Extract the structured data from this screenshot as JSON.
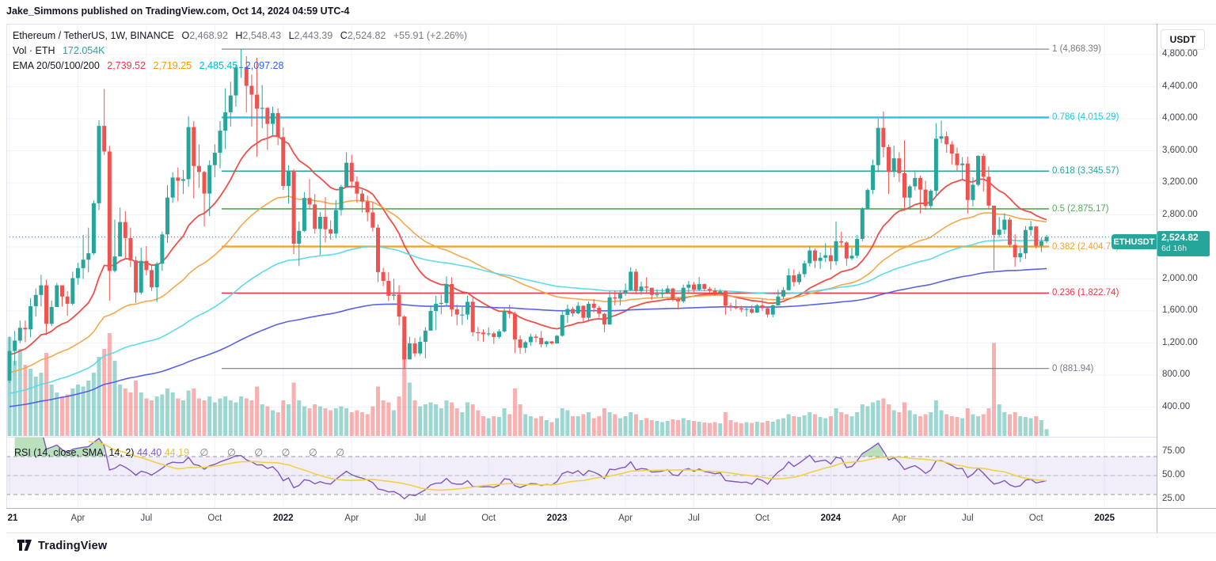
{
  "header": {
    "published_line": "Jake_Simmons published on TradingView.com, Oct 14, 2024 04:59 UTC-4"
  },
  "legend": {
    "symbol": {
      "title": "Ethereum / TetherUS, 1W, BINANCE",
      "o_label": "O",
      "o_value": "2,468.92",
      "h_label": "H",
      "h_value": "2,548.43",
      "l_label": "L",
      "l_value": "2,443.39",
      "c_label": "C",
      "c_value": "2,524.82",
      "change": "+55.91 (+2.26%)"
    },
    "volume": {
      "label": "Vol · ETH",
      "value": "172.054K",
      "value_color": "#26a69a"
    },
    "ema": {
      "label": "EMA 20/50/100/200",
      "values": [
        {
          "text": "2,739.52",
          "color": "#f23645"
        },
        {
          "text": "2,719.25",
          "color": "#ff9800"
        },
        {
          "text": "2,485.45",
          "color": "#00bcd4"
        },
        {
          "text": "2,097.28",
          "color": "#2962ff"
        }
      ]
    }
  },
  "rsi_legend": {
    "label": "RSI (14, close, SMA, 14, 2)",
    "rsi_value": "44.40",
    "ma_value": "44.19",
    "empty_values": "∅ ∅ ∅ ∅ ∅ ∅"
  },
  "price_axis": {
    "currency": "USDT",
    "ticks": [
      {
        "text": "4,800.00",
        "value": 4800
      },
      {
        "text": "4,400.00",
        "value": 4400
      },
      {
        "text": "4,000.00",
        "value": 4000
      },
      {
        "text": "3,600.00",
        "value": 3600
      },
      {
        "text": "3,200.00",
        "value": 3200
      },
      {
        "text": "2,800.00",
        "value": 2800
      },
      {
        "text": "2,000.00",
        "value": 2000
      },
      {
        "text": "1,600.00",
        "value": 1600
      },
      {
        "text": "1,200.00",
        "value": 1200
      },
      {
        "text": "800.00",
        "value": 800
      },
      {
        "text": "400.00",
        "value": 400
      }
    ]
  },
  "rsi_axis": {
    "ticks": [
      {
        "text": "75.00",
        "value": 75
      },
      {
        "text": "50.00",
        "value": 50
      },
      {
        "text": "25.00",
        "value": 25
      }
    ]
  },
  "price_label": {
    "symbol": "ETHUSDT",
    "price": "2,524.82",
    "countdown": "6d 16h",
    "color": "#26a69a"
  },
  "time_axis": {
    "labels": [
      {
        "text": "21",
        "week": 0,
        "bold": true
      },
      {
        "text": "Apr",
        "week": 13,
        "bold": false
      },
      {
        "text": "Jul",
        "week": 26,
        "bold": false
      },
      {
        "text": "Oct",
        "week": 39,
        "bold": false
      },
      {
        "text": "2022",
        "week": 52,
        "bold": true
      },
      {
        "text": "Apr",
        "week": 65,
        "bold": false
      },
      {
        "text": "Jul",
        "week": 78,
        "bold": false
      },
      {
        "text": "Oct",
        "week": 91,
        "bold": false
      },
      {
        "text": "2023",
        "week": 104,
        "bold": true
      },
      {
        "text": "Apr",
        "week": 117,
        "bold": false
      },
      {
        "text": "Jul",
        "week": 130,
        "bold": false
      },
      {
        "text": "Oct",
        "week": 143,
        "bold": false
      },
      {
        "text": "2024",
        "week": 156,
        "bold": true
      },
      {
        "text": "Apr",
        "week": 169,
        "bold": false
      },
      {
        "text": "Jul",
        "week": 182,
        "bold": false
      },
      {
        "text": "Oct",
        "week": 195,
        "bold": false
      },
      {
        "text": "2025",
        "week": 208,
        "bold": true
      }
    ]
  },
  "logo": {
    "text": "TradingView"
  },
  "chart_data": {
    "type": "candlestick",
    "symbol": "ETHUSDT",
    "exchange": "BINANCE",
    "timeframe": "1W",
    "panes": [
      "price+volume",
      "rsi"
    ],
    "current_price": 2524.82,
    "last_ohlc": {
      "o": 2468.92,
      "h": 2548.43,
      "l": 2443.39,
      "c": 2524.82,
      "change": 55.91,
      "change_pct": 2.26
    },
    "fib_retracement": {
      "high": 4868.39,
      "low": 881.94,
      "levels": [
        {
          "level": "1",
          "price": 4868.39,
          "label": "1 (4,868.39)",
          "color": "#787b86",
          "width": 1.2
        },
        {
          "level": "0.786",
          "price": 4015.29,
          "label": "0.786 (4,015.29)",
          "color": "#22c8dc",
          "width": 2.4
        },
        {
          "level": "0.618",
          "price": 3345.57,
          "label": "0.618 (3,345.57)",
          "color": "#26a69a",
          "width": 1.6
        },
        {
          "level": "0.5",
          "price": 2875.17,
          "label": "0.5 (2,875.17)",
          "color": "#4caf50",
          "width": 1.6
        },
        {
          "level": "0.382",
          "price": 2404.77,
          "label": "0.382 (2,404.77)",
          "color": "#f2a32f",
          "width": 2.4
        },
        {
          "level": "0.236",
          "price": 1822.74,
          "label": "0.236 (1,822.74)",
          "color": "#f23645",
          "width": 1.6
        },
        {
          "level": "0",
          "price": 881.94,
          "label": "0 (881.94)",
          "color": "#787b86",
          "width": 1.2
        }
      ]
    },
    "ema_periods": [
      20,
      50,
      100,
      200
    ],
    "ema_start_values": [
      1050,
      820,
      560,
      400
    ],
    "ema_colors": [
      "#f0453f",
      "#f5a341",
      "#55d9e8",
      "#4f5ae8"
    ],
    "rsi_period": 14,
    "rsi_ma_period": 14,
    "colors": {
      "up": "#26a69a",
      "down": "#ef5350",
      "vol_up": "rgba(38,166,154,0.45)",
      "vol_down": "rgba(239,83,80,0.45)",
      "rsi_line": "#7e57c2",
      "rsi_ma": "#f0d146",
      "rsi_band_fill": "rgba(126,87,194,0.10)",
      "rsi_overbought_fill": "rgba(102,187,106,0.45)",
      "grid": "#f0f3fa",
      "price_line": "#26a69a"
    },
    "first_open": 730,
    "hlc": [
      [
        1280,
        700,
        1100
      ],
      [
        1350,
        920,
        1230
      ],
      [
        1480,
        1200,
        1390
      ],
      [
        1480,
        1210,
        1370
      ],
      [
        1760,
        1270,
        1660
      ],
      [
        1880,
        1530,
        1800
      ],
      [
        2050,
        1655,
        1920
      ],
      [
        1990,
        1300,
        1440
      ],
      [
        1730,
        1410,
        1650
      ],
      [
        1950,
        1650,
        1920
      ],
      [
        1900,
        1655,
        1780
      ],
      [
        1850,
        1540,
        1690
      ],
      [
        2090,
        1670,
        2010
      ],
      [
        2200,
        1930,
        2135
      ],
      [
        2550,
        2000,
        2240
      ],
      [
        2640,
        2080,
        2320
      ],
      [
        2980,
        2300,
        2945
      ],
      [
        3980,
        2860,
        3910
      ],
      [
        4372,
        3550,
        3590
      ],
      [
        3660,
        1730,
        2100
      ],
      [
        2740,
        2080,
        2280
      ],
      [
        2890,
        2560,
        2710
      ],
      [
        2845,
        2255,
        2510
      ],
      [
        2640,
        2150,
        2230
      ],
      [
        2280,
        1700,
        1830
      ],
      [
        2390,
        1805,
        2225
      ],
      [
        2410,
        2045,
        2110
      ],
      [
        2170,
        1850,
        1895
      ],
      [
        2210,
        1710,
        2190
      ],
      [
        2590,
        2100,
        2555
      ],
      [
        3170,
        2450,
        3015
      ],
      [
        3330,
        2950,
        3265
      ],
      [
        3390,
        2970,
        3225
      ],
      [
        3360,
        3060,
        3245
      ],
      [
        4030,
        3150,
        3895
      ],
      [
        3970,
        3005,
        3410
      ],
      [
        3680,
        3135,
        3335
      ],
      [
        3350,
        2655,
        3065
      ],
      [
        3480,
        2785,
        3420
      ],
      [
        3680,
        3270,
        3575
      ],
      [
        3970,
        3380,
        3850
      ],
      [
        4380,
        3620,
        4080
      ],
      [
        4460,
        3900,
        4290
      ],
      [
        4670,
        4150,
        4640
      ],
      [
        4868,
        4510,
        4645
      ],
      [
        4780,
        4080,
        4410
      ],
      [
        4550,
        3900,
        4300
      ],
      [
        4760,
        3525,
        4125
      ],
      [
        4420,
        3880,
        4135
      ],
      [
        4145,
        3610,
        3935
      ],
      [
        4150,
        3795,
        4070
      ],
      [
        4130,
        3670,
        3770
      ],
      [
        3890,
        3110,
        3160
      ],
      [
        3420,
        2940,
        3350
      ],
      [
        3370,
        2310,
        2440
      ],
      [
        2715,
        2160,
        2600
      ],
      [
        3085,
        2585,
        3010
      ],
      [
        3245,
        2880,
        2930
      ],
      [
        3060,
        2565,
        2625
      ],
      [
        2835,
        2300,
        2775
      ],
      [
        3020,
        2455,
        2620
      ],
      [
        2730,
        2490,
        2565
      ],
      [
        2985,
        2505,
        2860
      ],
      [
        3175,
        2790,
        3150
      ],
      [
        3580,
        3140,
        3450
      ],
      [
        3550,
        3135,
        3215
      ],
      [
        3280,
        2950,
        3065
      ],
      [
        3115,
        2830,
        2965
      ],
      [
        3040,
        2720,
        2830
      ],
      [
        2955,
        2590,
        2640
      ],
      [
        2680,
        1960,
        2085
      ],
      [
        2140,
        1910,
        1975
      ],
      [
        2085,
        1725,
        1790
      ],
      [
        2000,
        1735,
        1805
      ],
      [
        1920,
        1420,
        1530
      ],
      [
        1545,
        882,
        995
      ],
      [
        1280,
        1040,
        1195
      ],
      [
        1260,
        1030,
        1070
      ],
      [
        1280,
        1045,
        1215
      ],
      [
        1400,
        1010,
        1355
      ],
      [
        1670,
        1355,
        1600
      ],
      [
        1790,
        1360,
        1690
      ],
      [
        1805,
        1560,
        1700
      ],
      [
        2030,
        1665,
        1935
      ],
      [
        2020,
        1530,
        1620
      ],
      [
        1680,
        1420,
        1555
      ],
      [
        1650,
        1425,
        1555
      ],
      [
        1790,
        1490,
        1715
      ],
      [
        1780,
        1285,
        1335
      ],
      [
        1400,
        1225,
        1330
      ],
      [
        1370,
        1215,
        1310
      ],
      [
        1395,
        1285,
        1320
      ],
      [
        1340,
        1190,
        1275
      ],
      [
        1370,
        1255,
        1345
      ],
      [
        1630,
        1330,
        1590
      ],
      [
        1680,
        1510,
        1565
      ],
      [
        1590,
        1075,
        1245
      ],
      [
        1295,
        1065,
        1140
      ],
      [
        1230,
        1075,
        1210
      ],
      [
        1315,
        1165,
        1280
      ],
      [
        1310,
        1210,
        1265
      ],
      [
        1350,
        1145,
        1185
      ],
      [
        1230,
        1150,
        1220
      ],
      [
        1225,
        1180,
        1195
      ],
      [
        1300,
        1190,
        1290
      ],
      [
        1605,
        1280,
        1550
      ],
      [
        1680,
        1450,
        1625
      ],
      [
        1650,
        1530,
        1570
      ],
      [
        1710,
        1560,
        1665
      ],
      [
        1670,
        1460,
        1515
      ],
      [
        1720,
        1465,
        1690
      ],
      [
        1745,
        1585,
        1640
      ],
      [
        1665,
        1520,
        1565
      ],
      [
        1575,
        1335,
        1430
      ],
      [
        1845,
        1435,
        1770
      ],
      [
        1855,
        1670,
        1755
      ],
      [
        1860,
        1670,
        1820
      ],
      [
        1945,
        1790,
        1860
      ],
      [
        2145,
        1850,
        2090
      ],
      [
        2125,
        1810,
        1850
      ],
      [
        1965,
        1800,
        1905
      ],
      [
        2020,
        1820,
        1890
      ],
      [
        1830,
        1740,
        1800
      ],
      [
        1870,
        1770,
        1810
      ],
      [
        1880,
        1760,
        1830
      ],
      [
        1920,
        1840,
        1880
      ],
      [
        1890,
        1720,
        1740
      ],
      [
        1770,
        1620,
        1720
      ],
      [
        1930,
        1700,
        1890
      ],
      [
        1975,
        1830,
        1930
      ],
      [
        1960,
        1835,
        1865
      ],
      [
        2025,
        1850,
        1935
      ],
      [
        1945,
        1845,
        1875
      ],
      [
        1900,
        1825,
        1855
      ],
      [
        1890,
        1790,
        1825
      ],
      [
        1870,
        1805,
        1845
      ],
      [
        1855,
        1550,
        1665
      ],
      [
        1700,
        1600,
        1650
      ],
      [
        1745,
        1620,
        1635
      ],
      [
        1665,
        1585,
        1620
      ],
      [
        1660,
        1530,
        1625
      ],
      [
        1670,
        1565,
        1580
      ],
      [
        1690,
        1575,
        1670
      ],
      [
        1745,
        1600,
        1635
      ],
      [
        1645,
        1520,
        1555
      ],
      [
        1680,
        1520,
        1670
      ],
      [
        1865,
        1665,
        1780
      ],
      [
        1900,
        1755,
        1860
      ],
      [
        2130,
        1855,
        2045
      ],
      [
        2120,
        1905,
        1960
      ],
      [
        2090,
        1930,
        2060
      ],
      [
        2230,
        2020,
        2195
      ],
      [
        2405,
        2155,
        2355
      ],
      [
        2380,
        2135,
        2225
      ],
      [
        2330,
        2125,
        2265
      ],
      [
        2445,
        2210,
        2295
      ],
      [
        2390,
        2115,
        2220
      ],
      [
        2715,
        2170,
        2470
      ],
      [
        2590,
        2405,
        2455
      ],
      [
        2470,
        2165,
        2255
      ],
      [
        2390,
        2235,
        2290
      ],
      [
        2550,
        2260,
        2500
      ],
      [
        2895,
        2470,
        2880
      ],
      [
        3130,
        2865,
        3110
      ],
      [
        3490,
        3060,
        3420
      ],
      [
        4000,
        3330,
        3885
      ],
      [
        4093,
        3520,
        3645
      ],
      [
        3675,
        3060,
        3335
      ],
      [
        3665,
        3270,
        3505
      ],
      [
        3580,
        3210,
        3320
      ],
      [
        3730,
        2850,
        3015
      ],
      [
        3175,
        2865,
        3155
      ],
      [
        3355,
        3105,
        3260
      ],
      [
        3290,
        2815,
        3115
      ],
      [
        3225,
        2860,
        2910
      ],
      [
        3120,
        2880,
        3100
      ],
      [
        3945,
        3025,
        3750
      ],
      [
        3975,
        3695,
        3780
      ],
      [
        3840,
        3575,
        3680
      ],
      [
        3720,
        3430,
        3565
      ],
      [
        3640,
        3340,
        3420
      ],
      [
        3520,
        3240,
        3440
      ],
      [
        3525,
        2815,
        2985
      ],
      [
        3270,
        2905,
        3175
      ],
      [
        3545,
        3155,
        3535
      ],
      [
        3565,
        3090,
        3275
      ],
      [
        3405,
        2865,
        2915
      ],
      [
        2760,
        2110,
        2550
      ],
      [
        2775,
        2515,
        2615
      ],
      [
        2820,
        2560,
        2740
      ],
      [
        2765,
        2400,
        2425
      ],
      [
        2555,
        2150,
        2270
      ],
      [
        2390,
        2210,
        2320
      ],
      [
        2660,
        2250,
        2610
      ],
      [
        2725,
        2540,
        2655
      ],
      [
        2660,
        2380,
        2415
      ],
      [
        2520,
        2335,
        2470
      ],
      [
        2548,
        2443,
        2525
      ]
    ],
    "volume_k": [
      2500,
      1900,
      2200,
      1800,
      1700,
      1500,
      1600,
      2100,
      1300,
      1100,
      1000,
      1050,
      1200,
      1300,
      1250,
      1400,
      1600,
      2000,
      2200,
      2600,
      1900,
      1300,
      1200,
      1100,
      1400,
      1100,
      950,
      900,
      1000,
      1050,
      1200,
      1100,
      950,
      900,
      1150,
      1200,
      950,
      900,
      1000,
      850,
      950,
      1000,
      900,
      850,
      1000,
      950,
      900,
      1250,
      800,
      750,
      650,
      600,
      900,
      800,
      1350,
      900,
      750,
      700,
      800,
      750,
      700,
      650,
      700,
      750,
      700,
      600,
      650,
      600,
      550,
      750,
      1250,
      900,
      850,
      650,
      1000,
      2450,
      1350,
      900,
      750,
      800,
      850,
      800,
      700,
      900,
      850,
      700,
      600,
      850,
      800,
      650,
      500,
      450,
      500,
      480,
      700,
      550,
      1200,
      800,
      550,
      500,
      450,
      500,
      400,
      350,
      450,
      700,
      650,
      500,
      500,
      550,
      600,
      450,
      500,
      700,
      600,
      550,
      450,
      500,
      600,
      550,
      400,
      450,
      400,
      380,
      350,
      380,
      420,
      400,
      450,
      400,
      380,
      360,
      340,
      330,
      350,
      320,
      600,
      400,
      350,
      320,
      350,
      330,
      360,
      340,
      380,
      360,
      420,
      450,
      550,
      500,
      480,
      520,
      600,
      550,
      480,
      450,
      500,
      700,
      600,
      550,
      500,
      600,
      800,
      750,
      850,
      900,
      950,
      800,
      650,
      600,
      850,
      650,
      550,
      500,
      550,
      600,
      900,
      650,
      550,
      500,
      480,
      450,
      700,
      550,
      500,
      550,
      700,
      2350,
      800,
      600,
      550,
      600,
      500,
      480,
      450,
      500,
      400,
      172
    ]
  }
}
